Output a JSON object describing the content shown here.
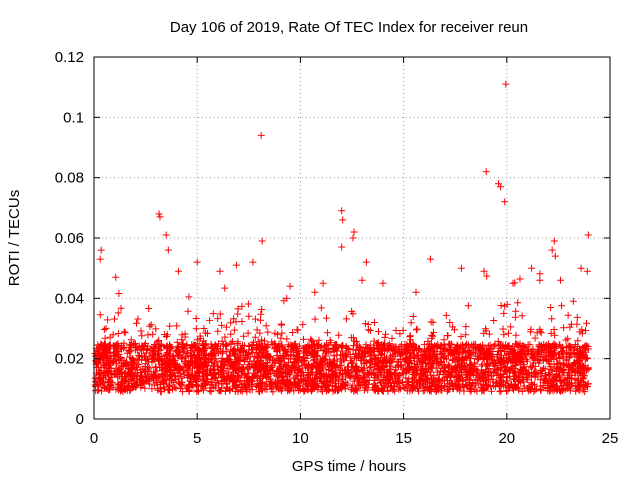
{
  "chart_data": {
    "type": "scatter",
    "title": "Day 106 of 2019, Rate Of TEC Index for receiver reun",
    "xlabel": "GPS time / hours",
    "ylabel": "ROTI / TECUs",
    "xlim": [
      0,
      25
    ],
    "ylim": [
      0,
      0.12
    ],
    "xticks": [
      0,
      5,
      10,
      15,
      20,
      25
    ],
    "xtick_labels": [
      "0",
      "5",
      "10",
      "15",
      "20",
      "25"
    ],
    "yticks": [
      0,
      0.02,
      0.04,
      0.06,
      0.08,
      0.1,
      0.12
    ],
    "ytick_labels": [
      "0",
      "0.02",
      "0.04",
      "0.06",
      "0.08",
      "0.1",
      "0.12"
    ],
    "grid": true,
    "marker": "+",
    "marker_color": "#ff0000",
    "series": [
      {
        "name": "ROTI",
        "note": "dense band of points mostly between 0.005 and 0.035 TECU/min across 0-24 h; notable outliers listed below",
        "points": [
          [
            8.1,
            0.094
          ],
          [
            19.95,
            0.111
          ],
          [
            19.0,
            0.082
          ],
          [
            19.6,
            0.078
          ],
          [
            19.7,
            0.077
          ],
          [
            19.9,
            0.072
          ],
          [
            3.15,
            0.068
          ],
          [
            3.2,
            0.067
          ],
          [
            12.0,
            0.069
          ],
          [
            12.05,
            0.066
          ],
          [
            12.6,
            0.062
          ],
          [
            12.55,
            0.06
          ],
          [
            3.5,
            0.061
          ],
          [
            8.15,
            0.059
          ],
          [
            22.3,
            0.059
          ],
          [
            23.95,
            0.061
          ],
          [
            22.2,
            0.056
          ],
          [
            0.35,
            0.056
          ],
          [
            0.3,
            0.053
          ],
          [
            3.6,
            0.056
          ],
          [
            12.0,
            0.057
          ],
          [
            22.35,
            0.054
          ],
          [
            7.7,
            0.052
          ],
          [
            6.9,
            0.051
          ],
          [
            16.3,
            0.053
          ],
          [
            17.8,
            0.05
          ],
          [
            21.2,
            0.05
          ],
          [
            23.6,
            0.05
          ],
          [
            23.9,
            0.049
          ],
          [
            13.2,
            0.052
          ],
          [
            1.05,
            0.047
          ],
          [
            4.1,
            0.049
          ],
          [
            5.0,
            0.052
          ],
          [
            6.1,
            0.049
          ],
          [
            9.5,
            0.044
          ],
          [
            10.7,
            0.042
          ],
          [
            11.1,
            0.045
          ],
          [
            14.0,
            0.045
          ],
          [
            15.6,
            0.042
          ],
          [
            18.9,
            0.049
          ],
          [
            20.3,
            0.045
          ],
          [
            21.6,
            0.046
          ],
          [
            22.6,
            0.046
          ]
        ]
      }
    ]
  }
}
